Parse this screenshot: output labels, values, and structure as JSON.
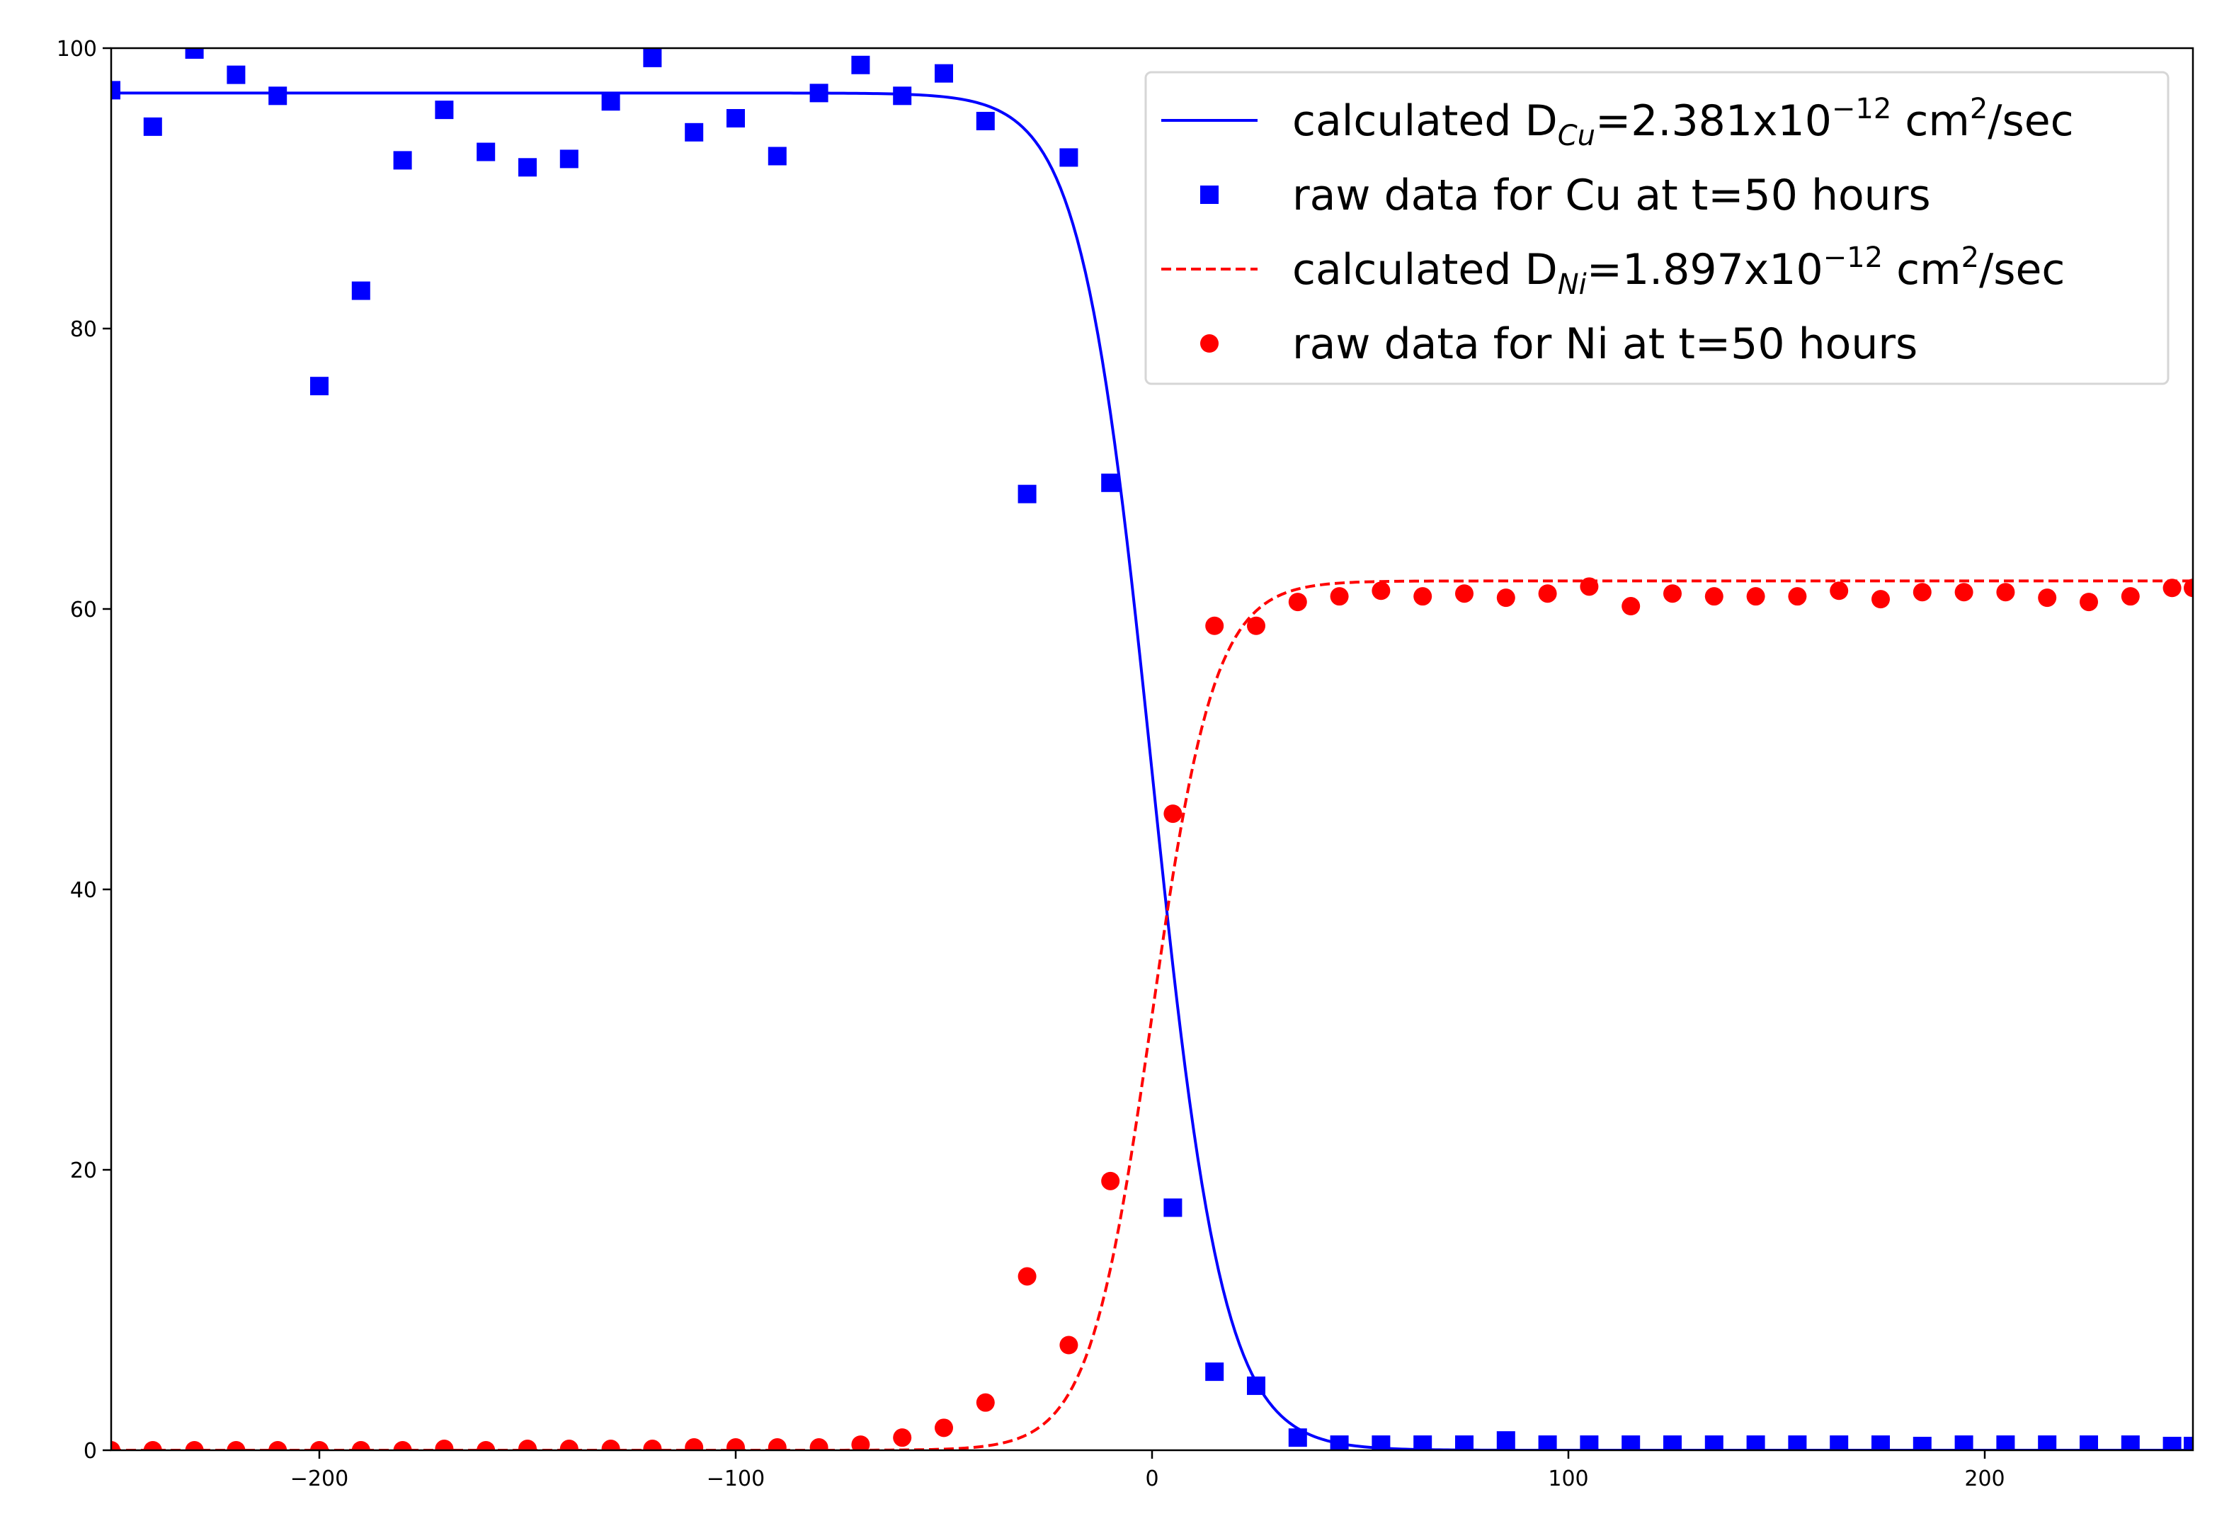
{
  "chart_data": {
    "type": "scatter",
    "title": "",
    "xlabel": "",
    "ylabel": "",
    "xlim": [
      -250,
      250
    ],
    "ylim": [
      0,
      100
    ],
    "x_ticks": [
      -200,
      -100,
      0,
      100,
      200
    ],
    "x_tick_labels": [
      "−200",
      "−100",
      "0",
      "100",
      "200"
    ],
    "y_ticks": [
      0,
      20,
      40,
      60,
      80,
      100
    ],
    "y_tick_labels": [
      "0",
      "20",
      "40",
      "60",
      "80",
      "100"
    ],
    "grid": false,
    "legend_position": "top-right",
    "colors": {
      "cu": "#0000ff",
      "ni": "#ff0000"
    },
    "series": [
      {
        "name": "calculated D_Cu=2.381x10^-12 cm^2/sec",
        "kind": "line",
        "style": "solid",
        "color": "#0000ff",
        "model": {
          "plateau": 96.8,
          "baseline": 0.0,
          "center": 0,
          "width": 8.5,
          "decreasing": true
        }
      },
      {
        "name": "raw data for Cu at t=50 hours",
        "kind": "markers",
        "marker": "square",
        "color": "#0000ff",
        "x": [
          -250,
          -240,
          -230,
          -220,
          -210,
          -200,
          -190,
          -180,
          -170,
          -160,
          -150,
          -140,
          -130,
          -120,
          -110,
          -100,
          -90,
          -80,
          -70,
          -60,
          -50,
          -40,
          -30,
          -20,
          -10,
          5,
          15,
          25,
          35,
          45,
          55,
          65,
          75,
          85,
          95,
          105,
          115,
          125,
          135,
          145,
          155,
          165,
          175,
          185,
          195,
          205,
          215,
          225,
          235,
          245,
          250
        ],
        "y": [
          97.0,
          94.4,
          99.9,
          98.1,
          96.6,
          75.9,
          82.7,
          92.0,
          95.6,
          92.6,
          91.5,
          92.1,
          96.2,
          99.3,
          94.0,
          95.0,
          92.3,
          96.8,
          98.8,
          96.6,
          98.2,
          94.8,
          68.2,
          92.2,
          69.0,
          17.3,
          5.6,
          4.6,
          0.9,
          0.4,
          0.4,
          0.4,
          0.4,
          0.7,
          0.4,
          0.4,
          0.4,
          0.4,
          0.4,
          0.4,
          0.4,
          0.4,
          0.4,
          0.3,
          0.4,
          0.4,
          0.4,
          0.4,
          0.4,
          0.3,
          0.3
        ]
      },
      {
        "name": "calculated D_Ni=1.897x10^-12 cm^2/sec",
        "kind": "line",
        "style": "dashed",
        "color": "#ff0000",
        "model": {
          "plateau": 62.0,
          "baseline": 0.0,
          "center": 0,
          "width": 7.5,
          "decreasing": false
        }
      },
      {
        "name": "raw data for Ni at t=50 hours",
        "kind": "markers",
        "marker": "circle",
        "color": "#ff0000",
        "x": [
          -250,
          -240,
          -230,
          -220,
          -210,
          -200,
          -190,
          -180,
          -170,
          -160,
          -150,
          -140,
          -130,
          -120,
          -110,
          -100,
          -90,
          -80,
          -70,
          -60,
          -50,
          -40,
          -30,
          -20,
          -10,
          5,
          15,
          25,
          35,
          45,
          55,
          65,
          75,
          85,
          95,
          105,
          115,
          125,
          135,
          145,
          155,
          165,
          175,
          185,
          195,
          205,
          215,
          225,
          235,
          245,
          250
        ],
        "y": [
          0.0,
          0.0,
          0.0,
          0.0,
          0.0,
          0.0,
          0.0,
          0.0,
          0.1,
          0.0,
          0.1,
          0.1,
          0.1,
          0.1,
          0.2,
          0.2,
          0.2,
          0.2,
          0.4,
          0.9,
          1.6,
          3.4,
          12.4,
          7.5,
          19.2,
          45.4,
          58.8,
          58.8,
          60.5,
          60.9,
          61.3,
          60.9,
          61.1,
          60.8,
          61.1,
          61.6,
          60.2,
          61.1,
          60.9,
          60.9,
          60.9,
          61.3,
          60.7,
          61.2,
          61.2,
          61.2,
          60.8,
          60.5,
          60.9,
          61.5,
          61.5
        ]
      }
    ],
    "legend": [
      {
        "marker": "line-solid",
        "color": "#0000ff",
        "prefix": "calculated D",
        "sub": "Cu",
        "mid": "=2.381x10",
        "sup": "−12",
        "suffix": " cm",
        "sup2": "2",
        "tail": "/sec"
      },
      {
        "marker": "square",
        "color": "#0000ff",
        "text": "raw data for Cu at t=50 hours"
      },
      {
        "marker": "line-dashed",
        "color": "#ff0000",
        "prefix": "calculated D",
        "sub": "Ni",
        "mid": "=1.897x10",
        "sup": "−12",
        "suffix": " cm",
        "sup2": "2",
        "tail": "/sec"
      },
      {
        "marker": "circle",
        "color": "#ff0000",
        "text": "raw data for Ni at t=50 hours"
      }
    ]
  }
}
